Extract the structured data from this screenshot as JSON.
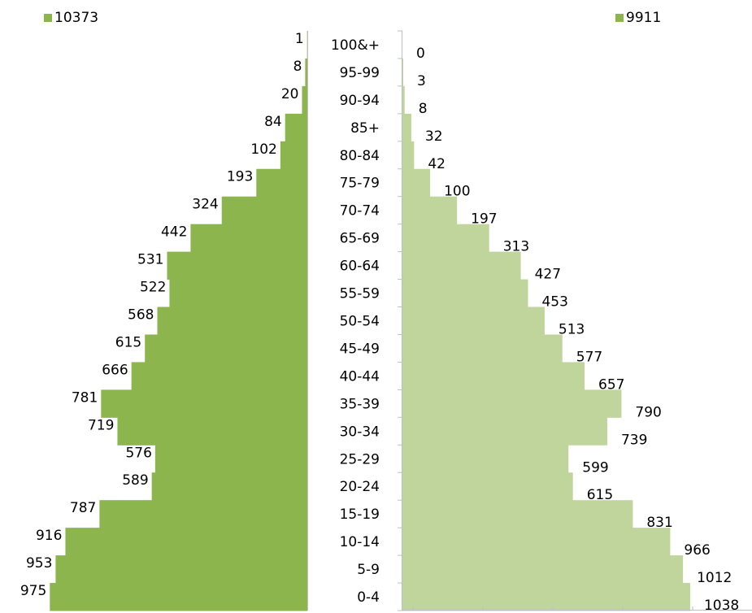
{
  "chart_data": {
    "type": "bar",
    "categories": [
      "100&+",
      "95-99",
      "90-94",
      "85+",
      "80-84",
      "75-79",
      "70-74",
      "65-69",
      "60-64",
      "55-59",
      "50-54",
      "45-49",
      "40-44",
      "35-39",
      "30-34",
      "25-29",
      "20-24",
      "15-19",
      "10-14",
      "5-9",
      "0-4"
    ],
    "series": [
      {
        "name": "10373",
        "color": "#8db54d",
        "values": [
          1,
          8,
          20,
          84,
          102,
          193,
          324,
          442,
          531,
          522,
          568,
          615,
          666,
          781,
          719,
          576,
          589,
          787,
          916,
          953,
          975
        ]
      },
      {
        "name": "9911",
        "color": "#c0d59b",
        "values": [
          0,
          3,
          8,
          32,
          42,
          100,
          197,
          313,
          427,
          453,
          513,
          577,
          657,
          790,
          739,
          599,
          615,
          831,
          966,
          1012,
          1038
        ]
      }
    ],
    "legend_colors": {
      "left": "#8db54d",
      "right": "#8db54d"
    },
    "xlim": [
      0,
      1100
    ]
  }
}
